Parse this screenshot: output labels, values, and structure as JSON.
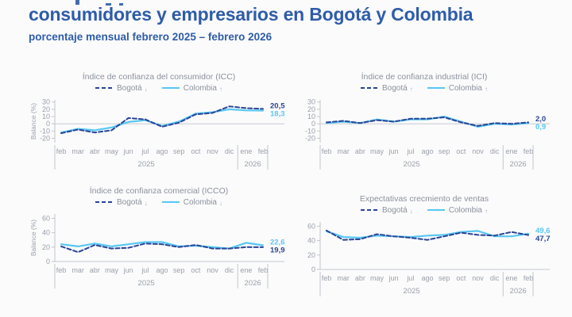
{
  "page": {
    "title": "consumidores y empresarios en Bogotá y Colombia",
    "subtitle": "porcentaje mensual febrero 2025 – febrero 2026"
  },
  "colors": {
    "accent_title": "#2e5ca8",
    "bogota": "#2a4494",
    "colombia": "#58c7f3",
    "axis": "#c2c6cc",
    "zero_line": "#c6c9ce",
    "tick_text": "#9aa0a8",
    "chart_title_text": "#8b929b",
    "background": "#fbfbfc"
  },
  "chart_data": [
    {
      "type": "line",
      "title": "Índice de confianza del consumidor (ICC)",
      "ylabel": "Balance (%)",
      "yticks": [
        30,
        20,
        10,
        0,
        -10,
        -20
      ],
      "ylim": [
        -26,
        33
      ],
      "categories": [
        "feb",
        "mar",
        "abr",
        "may",
        "jun",
        "jul",
        "ago",
        "sep",
        "oct",
        "nov",
        "dic",
        "ene",
        "feb"
      ],
      "year_groups": [
        {
          "label": "2025",
          "months": 11
        },
        {
          "label": "2026",
          "months": 2
        }
      ],
      "series": [
        {
          "name": "Bogotá",
          "trend_arrow": "↓",
          "line_style": "dashed",
          "color": "bogota",
          "values": [
            -13,
            -8,
            -12,
            -9,
            8,
            6,
            -4,
            1.5,
            13,
            15,
            24,
            21.5,
            20.5
          ],
          "end_label": "20,5"
        },
        {
          "name": "Colombia",
          "trend_arrow": "↑",
          "line_style": "solid",
          "color": "colombia",
          "values": [
            -12,
            -7,
            -9,
            -5,
            2.5,
            5,
            -3,
            3,
            14,
            16,
            20,
            18.5,
            18.3
          ],
          "end_label": "18,3"
        }
      ]
    },
    {
      "type": "line",
      "title": "Índice de confianza industrial (ICI)",
      "ylabel": "",
      "yticks": [
        30,
        20,
        10,
        0,
        -10,
        -20
      ],
      "ylim": [
        -26,
        33
      ],
      "categories": [
        "feb",
        "mar",
        "abr",
        "may",
        "jun",
        "jul",
        "ago",
        "sep",
        "oct",
        "nov",
        "dic",
        "ene",
        "feb"
      ],
      "year_groups": [
        {
          "label": "2025",
          "months": 11
        },
        {
          "label": "2026",
          "months": 2
        }
      ],
      "series": [
        {
          "name": "Bogotá",
          "trend_arrow": "↑",
          "line_style": "dashed",
          "color": "bogota",
          "values": [
            2,
            4,
            1,
            5,
            3,
            7,
            7,
            9,
            2,
            -3,
            1,
            0,
            2
          ],
          "end_label": "2,0"
        },
        {
          "name": "Colombia",
          "trend_arrow": "↑",
          "line_style": "solid",
          "color": "colombia",
          "values": [
            1,
            3,
            1,
            6,
            3,
            6,
            6,
            10,
            3,
            -4,
            0,
            -1,
            0.9
          ],
          "end_label": "0,9"
        }
      ]
    },
    {
      "type": "line",
      "title": "Índice de confianza comercial (ICCO)",
      "ylabel": "Balance (%)",
      "yticks": [
        60,
        40,
        20,
        0
      ],
      "ylim": [
        0,
        66
      ],
      "categories": [
        "feb",
        "mar",
        "abr",
        "may",
        "jun",
        "jul",
        "ago",
        "sep",
        "oct",
        "nov",
        "dic",
        "ene",
        "feb"
      ],
      "year_groups": [
        {
          "label": "2025",
          "months": 11
        },
        {
          "label": "2026",
          "months": 2
        }
      ],
      "series": [
        {
          "name": "Bogotá",
          "trend_arrow": "↓",
          "line_style": "dashed",
          "color": "bogota",
          "values": [
            21,
            13,
            23,
            18,
            19,
            25,
            24,
            20,
            23,
            18,
            18,
            20,
            19.9
          ],
          "end_label": "19,9"
        },
        {
          "name": "Colombia",
          "trend_arrow": "↓",
          "line_style": "solid",
          "color": "colombia",
          "values": [
            24,
            21,
            25,
            21,
            24,
            27,
            27,
            21,
            22,
            20,
            18,
            26,
            22.6
          ],
          "end_label": "22,6"
        }
      ]
    },
    {
      "type": "line",
      "title": "Expectativas crecmiento de ventas",
      "ylabel": "",
      "yticks": [
        60,
        40,
        20,
        0
      ],
      "ylim": [
        0,
        66
      ],
      "categories": [
        "feb",
        "mar",
        "abr",
        "may",
        "jun",
        "jul",
        "ago",
        "sep",
        "oct",
        "nov",
        "dic",
        "ene",
        "feb"
      ],
      "year_groups": [
        {
          "label": "2025",
          "months": 11
        },
        {
          "label": "2026",
          "months": 2
        }
      ],
      "series": [
        {
          "name": "Bogotá",
          "trend_arrow": "↓",
          "line_style": "dashed",
          "color": "bogota",
          "values": [
            54,
            41,
            42,
            49,
            46,
            44,
            41,
            46,
            51,
            48,
            47,
            52,
            47.7
          ],
          "end_label": "47,7"
        },
        {
          "name": "Colombia",
          "trend_arrow": "↑",
          "line_style": "solid",
          "color": "colombia",
          "values": [
            53,
            45,
            44,
            47,
            46,
            45,
            47,
            48,
            52,
            53.5,
            46,
            46,
            49.6
          ],
          "end_label": "49,6"
        }
      ]
    }
  ]
}
